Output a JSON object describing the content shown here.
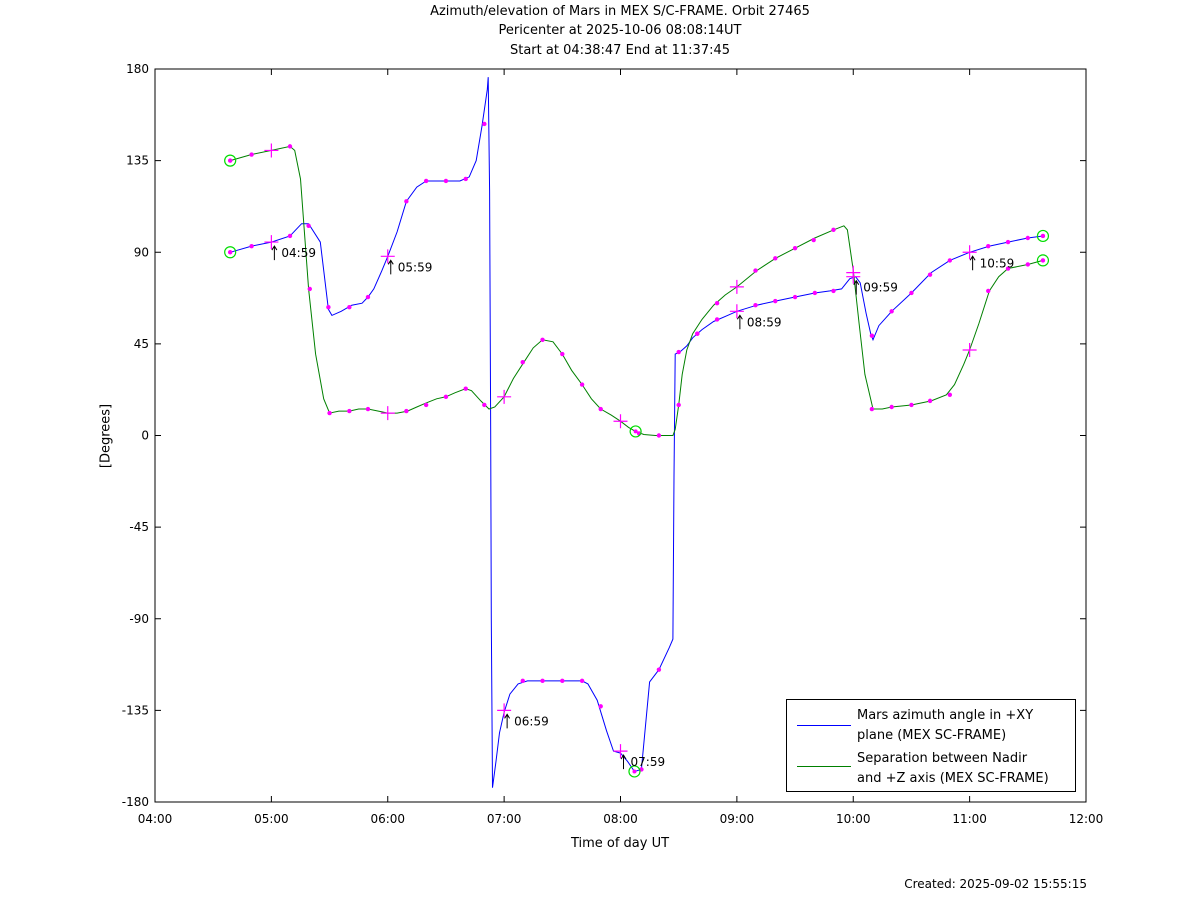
{
  "titles": [
    "Azimuth/elevation of Mars in MEX S/C-FRAME.  Orbit 27465",
    "Pericenter at 2025-10-06 08:08:14UT",
    "Start at 04:38:47 End at 11:37:45"
  ],
  "footer": "Created: 2025-09-02 15:55:15",
  "colors": {
    "blue": "#0000ff",
    "green": "#008000",
    "markers": "#ff00ff",
    "circles": "#00dd00"
  },
  "chart_data": {
    "type": "line",
    "xlabel": "Time of day UT",
    "ylabel": "[Degrees]",
    "xlim": [
      4.0,
      12.0
    ],
    "ylim": [
      -180,
      180
    ],
    "xticks": [
      {
        "v": 4,
        "label": "04:00"
      },
      {
        "v": 5,
        "label": "05:00"
      },
      {
        "v": 6,
        "label": "06:00"
      },
      {
        "v": 7,
        "label": "07:00"
      },
      {
        "v": 8,
        "label": "08:00"
      },
      {
        "v": 9,
        "label": "09:00"
      },
      {
        "v": 10,
        "label": "10:00"
      },
      {
        "v": 11,
        "label": "11:00"
      },
      {
        "v": 12,
        "label": "12:00"
      }
    ],
    "yticks": [
      {
        "v": 180,
        "label": "180"
      },
      {
        "v": 135,
        "label": "135"
      },
      {
        "v": 90,
        "label": "90"
      },
      {
        "v": 45,
        "label": "45"
      },
      {
        "v": 0,
        "label": "0"
      },
      {
        "v": -45,
        "label": "-45"
      },
      {
        "v": -90,
        "label": "-90"
      },
      {
        "v": -135,
        "label": "-135"
      },
      {
        "v": -180,
        "label": "-180"
      }
    ],
    "grid": false,
    "legend_position": "bottom-right",
    "series": [
      {
        "name": "Mars azimuth angle in +XY plane (MEX SC-FRAME)",
        "legend_lines": [
          "Mars azimuth angle in +XY",
          "plane (MEX SC-FRAME)"
        ],
        "color": "#0000ff",
        "points": [
          [
            4.646,
            90
          ],
          [
            4.83,
            93
          ],
          [
            5.0,
            95
          ],
          [
            5.16,
            98
          ],
          [
            5.26,
            104
          ],
          [
            5.32,
            104
          ],
          [
            5.42,
            95
          ],
          [
            5.49,
            62
          ],
          [
            5.52,
            59
          ],
          [
            5.6,
            61
          ],
          [
            5.69,
            64
          ],
          [
            5.78,
            65
          ],
          [
            5.83,
            68
          ],
          [
            5.88,
            72
          ],
          [
            5.95,
            81
          ],
          [
            6.0,
            88
          ],
          [
            6.08,
            100
          ],
          [
            6.16,
            115
          ],
          [
            6.25,
            122
          ],
          [
            6.33,
            125
          ],
          [
            6.5,
            125
          ],
          [
            6.62,
            125
          ],
          [
            6.7,
            127
          ],
          [
            6.76,
            135
          ],
          [
            6.81,
            152
          ],
          [
            6.855,
            170
          ],
          [
            6.863,
            176
          ],
          [
            6.875,
            120
          ],
          [
            6.885,
            0
          ],
          [
            6.89,
            -90
          ],
          [
            6.9,
            -173
          ],
          [
            6.93,
            -160
          ],
          [
            6.96,
            -146
          ],
          [
            7.0,
            -136
          ],
          [
            7.05,
            -127
          ],
          [
            7.12,
            -122
          ],
          [
            7.2,
            -120.5
          ],
          [
            7.33,
            -120.5
          ],
          [
            7.5,
            -120.5
          ],
          [
            7.67,
            -120.5
          ],
          [
            7.72,
            -122
          ],
          [
            7.8,
            -130
          ],
          [
            7.88,
            -145
          ],
          [
            7.94,
            -155
          ],
          [
            8.0,
            -156
          ],
          [
            8.06,
            -160
          ],
          [
            8.12,
            -165
          ],
          [
            8.18,
            -164
          ],
          [
            8.25,
            -121
          ],
          [
            8.33,
            -115
          ],
          [
            8.42,
            -104
          ],
          [
            8.45,
            -100
          ],
          [
            8.46,
            -20
          ],
          [
            8.47,
            40
          ],
          [
            8.51,
            41
          ],
          [
            8.57,
            44
          ],
          [
            8.62,
            48
          ],
          [
            8.7,
            52
          ],
          [
            8.8,
            56
          ],
          [
            8.92,
            59
          ],
          [
            9.0,
            61
          ],
          [
            9.17,
            64
          ],
          [
            9.33,
            66
          ],
          [
            9.5,
            68
          ],
          [
            9.67,
            70
          ],
          [
            9.8,
            71
          ],
          [
            9.9,
            72
          ],
          [
            9.97,
            77
          ],
          [
            10.02,
            78
          ],
          [
            10.06,
            75
          ],
          [
            10.11,
            60
          ],
          [
            10.15,
            50
          ],
          [
            10.17,
            47
          ],
          [
            10.22,
            54
          ],
          [
            10.33,
            61
          ],
          [
            10.5,
            70
          ],
          [
            10.67,
            80
          ],
          [
            10.83,
            86
          ],
          [
            11.0,
            90
          ],
          [
            11.17,
            93
          ],
          [
            11.33,
            95
          ],
          [
            11.5,
            97
          ],
          [
            11.63,
            98
          ]
        ],
        "markers": [
          [
            4.646,
            90
          ],
          [
            4.83,
            93
          ],
          [
            5.16,
            98
          ],
          [
            5.32,
            103
          ],
          [
            5.49,
            63
          ],
          [
            5.67,
            63
          ],
          [
            5.83,
            68
          ],
          [
            6.16,
            115
          ],
          [
            6.33,
            125
          ],
          [
            6.5,
            125
          ],
          [
            6.67,
            126
          ],
          [
            6.83,
            153
          ],
          [
            7.16,
            -120.5
          ],
          [
            7.33,
            -120.5
          ],
          [
            7.5,
            -120.5
          ],
          [
            7.67,
            -120.5
          ],
          [
            7.83,
            -133
          ],
          [
            8.18,
            -164
          ],
          [
            8.33,
            -115
          ],
          [
            8.5,
            41
          ],
          [
            8.66,
            50
          ],
          [
            8.83,
            57
          ],
          [
            9.16,
            64
          ],
          [
            9.33,
            66
          ],
          [
            9.5,
            68
          ],
          [
            9.67,
            70
          ],
          [
            9.83,
            71
          ],
          [
            10.16,
            49
          ],
          [
            10.33,
            61
          ],
          [
            10.5,
            70
          ],
          [
            10.66,
            79
          ],
          [
            10.83,
            86
          ],
          [
            11.16,
            93
          ],
          [
            11.33,
            95
          ],
          [
            11.5,
            97
          ],
          [
            11.63,
            98
          ]
        ],
        "crosses": [
          [
            5.0,
            95
          ],
          [
            6.0,
            88
          ],
          [
            7.0,
            -135
          ],
          [
            8.0,
            -155
          ],
          [
            9.0,
            61
          ],
          [
            10.0,
            78
          ],
          [
            11.0,
            90
          ]
        ],
        "circles": [
          [
            4.646,
            90
          ],
          [
            11.63,
            98
          ]
        ]
      },
      {
        "name": "Separation between Nadir and +Z axis (MEX SC-FRAME)",
        "legend_lines": [
          "Separation between Nadir",
          "and +Z axis (MEX SC-FRAME)"
        ],
        "color": "#008000",
        "points": [
          [
            4.646,
            135
          ],
          [
            4.83,
            138
          ],
          [
            5.0,
            140
          ],
          [
            5.16,
            142
          ],
          [
            5.2,
            140
          ],
          [
            5.25,
            126
          ],
          [
            5.32,
            72
          ],
          [
            5.38,
            40
          ],
          [
            5.45,
            18
          ],
          [
            5.5,
            11
          ],
          [
            5.58,
            12
          ],
          [
            5.67,
            12
          ],
          [
            5.75,
            13
          ],
          [
            5.83,
            13
          ],
          [
            5.92,
            12
          ],
          [
            6.0,
            11
          ],
          [
            6.08,
            11
          ],
          [
            6.17,
            12
          ],
          [
            6.25,
            14
          ],
          [
            6.33,
            16
          ],
          [
            6.42,
            18
          ],
          [
            6.5,
            19
          ],
          [
            6.58,
            21
          ],
          [
            6.67,
            23
          ],
          [
            6.72,
            22
          ],
          [
            6.8,
            17
          ],
          [
            6.87,
            13
          ],
          [
            6.92,
            14
          ],
          [
            7.0,
            19
          ],
          [
            7.08,
            28
          ],
          [
            7.17,
            36
          ],
          [
            7.25,
            43
          ],
          [
            7.33,
            47
          ],
          [
            7.42,
            46
          ],
          [
            7.5,
            40
          ],
          [
            7.58,
            32
          ],
          [
            7.67,
            25
          ],
          [
            7.75,
            18
          ],
          [
            7.83,
            13
          ],
          [
            7.92,
            10
          ],
          [
            8.0,
            7
          ],
          [
            8.07,
            4
          ],
          [
            8.13,
            2
          ],
          [
            8.2,
            0.5
          ],
          [
            8.3,
            0
          ],
          [
            8.45,
            0
          ],
          [
            8.47,
            3
          ],
          [
            8.5,
            15
          ],
          [
            8.53,
            30
          ],
          [
            8.57,
            42
          ],
          [
            8.62,
            50
          ],
          [
            8.7,
            57
          ],
          [
            8.8,
            64
          ],
          [
            8.9,
            69
          ],
          [
            9.0,
            73
          ],
          [
            9.17,
            81
          ],
          [
            9.33,
            87
          ],
          [
            9.5,
            92
          ],
          [
            9.67,
            97
          ],
          [
            9.83,
            101
          ],
          [
            9.92,
            103
          ],
          [
            9.95,
            101
          ],
          [
            10.0,
            81
          ],
          [
            10.05,
            55
          ],
          [
            10.1,
            30
          ],
          [
            10.17,
            13
          ],
          [
            10.25,
            13
          ],
          [
            10.33,
            14
          ],
          [
            10.5,
            15
          ],
          [
            10.67,
            17
          ],
          [
            10.8,
            20
          ],
          [
            10.87,
            25
          ],
          [
            10.95,
            35
          ],
          [
            11.0,
            42
          ],
          [
            11.08,
            55
          ],
          [
            11.17,
            71
          ],
          [
            11.25,
            78
          ],
          [
            11.33,
            82
          ],
          [
            11.5,
            84
          ],
          [
            11.63,
            86
          ]
        ],
        "markers": [
          [
            4.646,
            135
          ],
          [
            4.83,
            138
          ],
          [
            5.16,
            142
          ],
          [
            5.33,
            72
          ],
          [
            5.5,
            11
          ],
          [
            5.67,
            12
          ],
          [
            5.83,
            13
          ],
          [
            6.16,
            12
          ],
          [
            6.33,
            15
          ],
          [
            6.5,
            19
          ],
          [
            6.67,
            23
          ],
          [
            6.83,
            15
          ],
          [
            7.16,
            36
          ],
          [
            7.33,
            47
          ],
          [
            7.5,
            40
          ],
          [
            7.67,
            25
          ],
          [
            7.83,
            13
          ],
          [
            8.16,
            1
          ],
          [
            8.33,
            0
          ],
          [
            8.5,
            15
          ],
          [
            8.66,
            50
          ],
          [
            8.83,
            65
          ],
          [
            9.16,
            81
          ],
          [
            9.33,
            87
          ],
          [
            9.5,
            92
          ],
          [
            9.66,
            96
          ],
          [
            9.83,
            101
          ],
          [
            10.16,
            13
          ],
          [
            10.33,
            14
          ],
          [
            10.5,
            15
          ],
          [
            10.66,
            17
          ],
          [
            10.83,
            20
          ],
          [
            11.16,
            71
          ],
          [
            11.33,
            82
          ],
          [
            11.5,
            84
          ],
          [
            11.63,
            86
          ]
        ],
        "crosses": [
          [
            5.0,
            140
          ],
          [
            6.0,
            11
          ],
          [
            7.0,
            19
          ],
          [
            8.0,
            7
          ],
          [
            9.0,
            73
          ],
          [
            10.0,
            80
          ],
          [
            11.0,
            42
          ]
        ],
        "circles": [
          [
            4.646,
            135
          ],
          [
            8.13,
            2
          ],
          [
            8.12,
            -165
          ],
          [
            11.63,
            86
          ]
        ]
      }
    ],
    "annotations": [
      {
        "x": 5.0,
        "y": 95,
        "label": "04:59"
      },
      {
        "x": 6.0,
        "y": 88,
        "label": "05:59"
      },
      {
        "x": 7.0,
        "y": -135,
        "label": "06:59"
      },
      {
        "x": 8.0,
        "y": -155,
        "label": "07:59"
      },
      {
        "x": 9.0,
        "y": 61,
        "label": "08:59"
      },
      {
        "x": 10.0,
        "y": 78,
        "label": "09:59"
      },
      {
        "x": 11.0,
        "y": 90,
        "label": "10:59"
      }
    ]
  }
}
